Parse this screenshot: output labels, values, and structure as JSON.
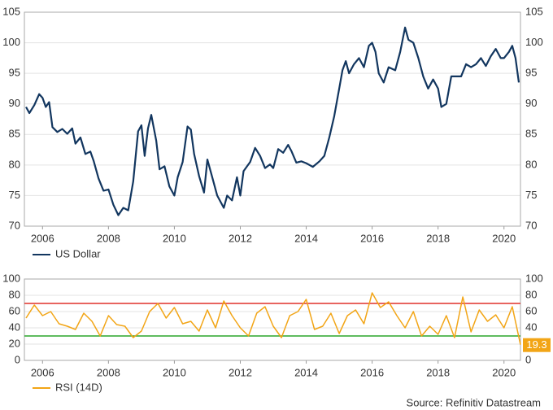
{
  "chart_data": [
    {
      "type": "line",
      "xlim": [
        2005.45,
        2020.5
      ],
      "xticks": [
        2006,
        2008,
        2010,
        2012,
        2014,
        2016,
        2018,
        2020
      ],
      "ylim": [
        70,
        105
      ],
      "yticks": [
        70,
        75,
        80,
        85,
        90,
        95,
        100,
        105
      ],
      "grid": true,
      "legend": "bottom-left",
      "series": [
        {
          "name": "US Dollar",
          "color": "#12365f",
          "x": [
            2005.5,
            2005.6,
            2005.75,
            2005.9,
            2006.0,
            2006.1,
            2006.2,
            2006.3,
            2006.45,
            2006.6,
            2006.75,
            2006.9,
            2007.0,
            2007.15,
            2007.3,
            2007.45,
            2007.55,
            2007.7,
            2007.85,
            2008.0,
            2008.15,
            2008.3,
            2008.45,
            2008.6,
            2008.75,
            2008.9,
            2009.0,
            2009.1,
            2009.2,
            2009.3,
            2009.45,
            2009.55,
            2009.7,
            2009.85,
            2010.0,
            2010.1,
            2010.25,
            2010.4,
            2010.5,
            2010.6,
            2010.75,
            2010.9,
            2011.0,
            2011.15,
            2011.3,
            2011.5,
            2011.6,
            2011.75,
            2011.9,
            2012.0,
            2012.1,
            2012.3,
            2012.45,
            2012.6,
            2012.75,
            2012.9,
            2013.0,
            2013.15,
            2013.3,
            2013.45,
            2013.55,
            2013.7,
            2013.85,
            2014.0,
            2014.2,
            2014.4,
            2014.55,
            2014.7,
            2014.85,
            2015.0,
            2015.1,
            2015.2,
            2015.3,
            2015.45,
            2015.6,
            2015.75,
            2015.9,
            2016.0,
            2016.1,
            2016.2,
            2016.35,
            2016.5,
            2016.7,
            2016.85,
            2017.0,
            2017.1,
            2017.25,
            2017.4,
            2017.55,
            2017.7,
            2017.85,
            2018.0,
            2018.1,
            2018.25,
            2018.4,
            2018.55,
            2018.7,
            2018.85,
            2019.0,
            2019.15,
            2019.3,
            2019.45,
            2019.6,
            2019.75,
            2019.9,
            2020.0,
            2020.15,
            2020.25,
            2020.35,
            2020.45
          ],
          "values": [
            89.5,
            88.5,
            89.8,
            91.6,
            91.0,
            89.5,
            90.3,
            86.2,
            85.4,
            85.9,
            85.1,
            86.0,
            83.5,
            84.5,
            81.8,
            82.2,
            80.7,
            77.8,
            75.8,
            76.0,
            73.5,
            71.8,
            73.0,
            72.6,
            77.3,
            85.5,
            86.5,
            81.5,
            86.0,
            88.2,
            84.0,
            79.3,
            79.8,
            76.5,
            75.0,
            78.0,
            80.5,
            86.3,
            85.8,
            81.8,
            78.2,
            75.5,
            80.9,
            78.0,
            75.0,
            73.0,
            75.0,
            74.2,
            78.0,
            75.0,
            79.0,
            80.5,
            82.8,
            81.5,
            79.5,
            80.1,
            79.5,
            82.6,
            82.0,
            83.3,
            82.3,
            80.4,
            80.6,
            80.3,
            79.7,
            80.6,
            81.5,
            84.5,
            88.0,
            92.5,
            95.5,
            97.0,
            95.0,
            96.5,
            97.5,
            96.0,
            99.5,
            100.0,
            98.5,
            95.0,
            93.5,
            96.0,
            95.5,
            98.5,
            102.5,
            100.5,
            100.0,
            97.5,
            94.5,
            92.5,
            94.0,
            92.5,
            89.5,
            90.0,
            94.5,
            94.5,
            94.5,
            96.5,
            96.0,
            96.5,
            97.5,
            96.2,
            97.8,
            99.0,
            97.5,
            97.5,
            98.5,
            99.5,
            97.5,
            93.5
          ]
        }
      ]
    },
    {
      "type": "line",
      "xlim": [
        2005.45,
        2020.5
      ],
      "xticks": [
        2006,
        2008,
        2010,
        2012,
        2014,
        2016,
        2018,
        2020
      ],
      "ylim": [
        0,
        100
      ],
      "yticks": [
        0,
        20,
        40,
        60,
        80,
        100
      ],
      "grid": true,
      "legend": "bottom-left",
      "hlines": [
        {
          "value": 70,
          "color": "#e0312a"
        },
        {
          "value": 30,
          "color": "#2aa52a"
        }
      ],
      "series": [
        {
          "name": "RSI (14D)",
          "color": "#f2a516",
          "x": [
            2005.5,
            2005.75,
            2006.0,
            2006.25,
            2006.5,
            2006.75,
            2007.0,
            2007.25,
            2007.5,
            2007.75,
            2008.0,
            2008.25,
            2008.5,
            2008.75,
            2009.0,
            2009.25,
            2009.5,
            2009.75,
            2010.0,
            2010.25,
            2010.5,
            2010.75,
            2011.0,
            2011.25,
            2011.5,
            2011.75,
            2012.0,
            2012.25,
            2012.5,
            2012.75,
            2013.0,
            2013.25,
            2013.5,
            2013.75,
            2014.0,
            2014.25,
            2014.5,
            2014.75,
            2015.0,
            2015.25,
            2015.5,
            2015.75,
            2016.0,
            2016.25,
            2016.5,
            2016.75,
            2017.0,
            2017.25,
            2017.5,
            2017.75,
            2018.0,
            2018.25,
            2018.5,
            2018.75,
            2019.0,
            2019.25,
            2019.5,
            2019.75,
            2020.0,
            2020.25,
            2020.5
          ],
          "values": [
            52,
            68,
            55,
            60,
            45,
            42,
            38,
            58,
            48,
            30,
            55,
            44,
            42,
            28,
            36,
            60,
            70,
            52,
            65,
            45,
            48,
            36,
            62,
            40,
            73,
            55,
            40,
            30,
            58,
            66,
            42,
            28,
            55,
            60,
            75,
            38,
            42,
            58,
            33,
            55,
            62,
            45,
            83,
            65,
            72,
            55,
            40,
            60,
            30,
            42,
            32,
            55,
            28,
            78,
            35,
            62,
            48,
            56,
            40,
            66,
            19.3
          ]
        }
      ],
      "source": "Source: Refinitiv Datastream"
    }
  ]
}
